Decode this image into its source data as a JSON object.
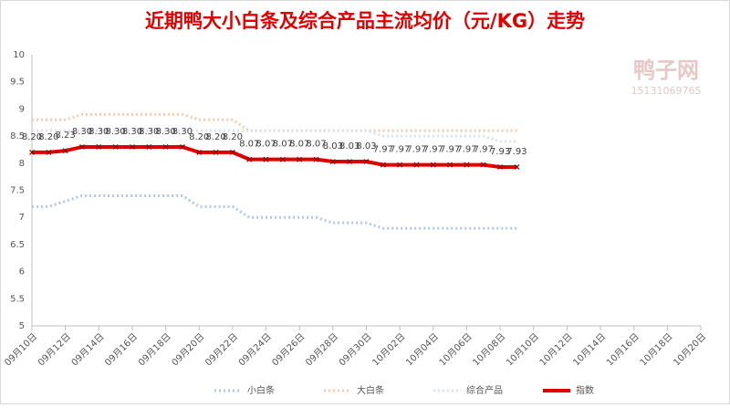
{
  "chart_data": {
    "type": "line",
    "title": "近期鸭大小白条及综合产品主流均价（元/KG）走势",
    "annotations": [
      "鸭子网",
      "15131069765"
    ],
    "categories": [
      "09月10日",
      null,
      "09月12日",
      null,
      "09月14日",
      null,
      "09月16日",
      null,
      "09月18日",
      null,
      "09月20日",
      null,
      "09月22日",
      null,
      "09月24日",
      null,
      "09月26日",
      null,
      "09月28日",
      null,
      "09月30日",
      null,
      "10月02日",
      null,
      "10月04日",
      null,
      "10月06日",
      null,
      "10月08日",
      null,
      "10月10日",
      null,
      "10月12日",
      null,
      "10月14日",
      null,
      "10月16日",
      null,
      "10月18日",
      null,
      "10月20日"
    ],
    "ylim": [
      5,
      10
    ],
    "yticks": [
      5,
      5.5,
      6,
      6.5,
      7,
      7.5,
      8,
      8.5,
      9,
      9.5,
      10
    ],
    "series": [
      {
        "name": "小白条",
        "color": "#b4c7e7",
        "style": "dotted",
        "values": [
          7.2,
          7.2,
          7.3,
          7.4,
          7.4,
          7.4,
          7.4,
          7.4,
          7.4,
          7.4,
          7.2,
          7.2,
          7.2,
          7.0,
          7.0,
          7.0,
          7.0,
          7.0,
          6.9,
          6.9,
          6.9,
          6.8,
          6.8,
          6.8,
          6.8,
          6.8,
          6.8,
          6.8,
          6.8,
          6.8,
          null,
          null,
          null,
          null,
          null,
          null,
          null,
          null,
          null,
          null,
          null
        ]
      },
      {
        "name": "大白条",
        "color": "#f8cbad",
        "style": "dotted",
        "values": [
          8.8,
          8.8,
          8.8,
          8.9,
          8.9,
          8.9,
          8.9,
          8.9,
          8.9,
          8.9,
          8.8,
          8.8,
          8.8,
          8.6,
          8.6,
          8.6,
          8.6,
          8.6,
          8.6,
          8.6,
          8.6,
          8.6,
          8.6,
          8.6,
          8.6,
          8.6,
          8.6,
          8.6,
          8.6,
          8.6,
          null,
          null,
          null,
          null,
          null,
          null,
          null,
          null,
          null,
          null,
          null
        ]
      },
      {
        "name": "综合产品",
        "color": "#d9e1f2",
        "style": "dotted",
        "values": [
          8.6,
          8.6,
          8.6,
          8.6,
          8.6,
          8.6,
          8.6,
          8.6,
          8.6,
          8.6,
          8.6,
          8.6,
          8.6,
          8.6,
          8.6,
          8.6,
          8.6,
          8.6,
          8.6,
          8.6,
          8.6,
          8.5,
          8.5,
          8.5,
          8.5,
          8.5,
          8.5,
          8.5,
          8.4,
          8.4,
          null,
          null,
          null,
          null,
          null,
          null,
          null,
          null,
          null,
          null,
          null
        ]
      },
      {
        "name": "指数",
        "color": "#e00000",
        "style": "solid",
        "values": [
          8.2,
          8.2,
          8.23,
          8.3,
          8.3,
          8.3,
          8.3,
          8.3,
          8.3,
          8.3,
          8.2,
          8.2,
          8.2,
          8.07,
          8.07,
          8.07,
          8.07,
          8.07,
          8.03,
          8.03,
          8.03,
          7.97,
          7.97,
          7.97,
          7.97,
          7.97,
          7.97,
          7.97,
          7.93,
          7.93,
          null,
          null,
          null,
          null,
          null,
          null,
          null,
          null,
          null,
          null,
          null
        ],
        "value_labels": [
          "8.20",
          "8.20",
          "8.23",
          "8.30",
          "8.30",
          "8.30",
          "8.30",
          "8.30",
          "8.30",
          "8.30",
          "8.20",
          "8.20",
          "8.20",
          "8.07",
          "8.07",
          "8.07",
          "8.07",
          "8.07",
          "8.03",
          "8.03",
          "8.03",
          "7.97",
          "7.97",
          "7.97",
          "7.97",
          "7.97",
          "7.97",
          "7.97",
          "7.93",
          "7.93",
          null,
          null,
          null,
          null,
          null,
          null,
          null,
          null,
          null,
          null,
          null
        ]
      }
    ]
  }
}
